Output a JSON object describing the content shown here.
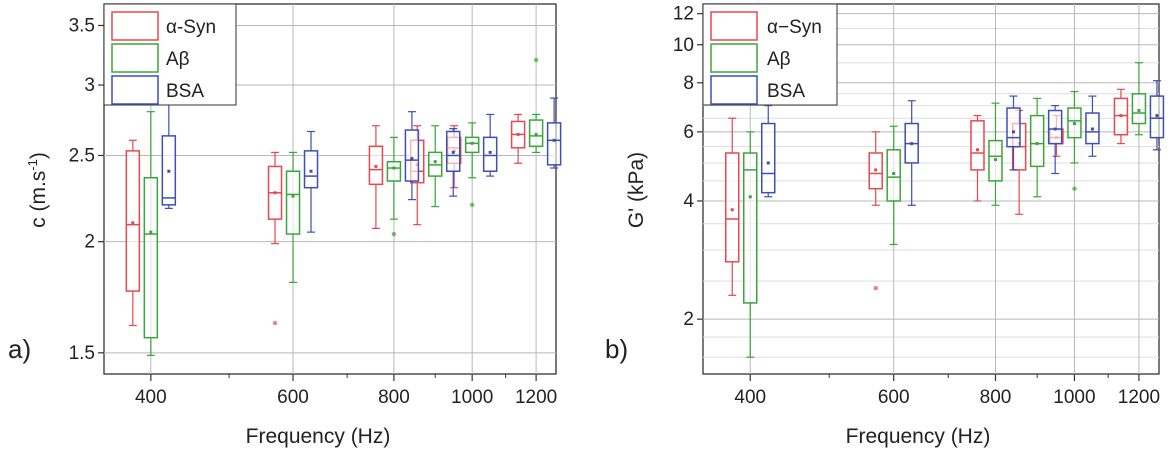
{
  "chart_data": [
    {
      "type": "box",
      "panel_label": "a)",
      "xlabel": "Frequency (Hz)",
      "ylabel": "c (m.s",
      "ylabel_sup": "-1",
      "ylabel_close": ")",
      "y_scale": "log",
      "ylim": [
        1.42,
        3.7
      ],
      "yticks": [
        1.5,
        2,
        2.5,
        3,
        3.5
      ],
      "x_scale": "log",
      "xlim": [
        350,
        1270
      ],
      "xticks": [
        400,
        600,
        800,
        1000,
        1200
      ],
      "grid": true,
      "legend_position": "top-left",
      "categories": [
        400,
        600,
        800,
        900,
        1000,
        1200
      ],
      "series": [
        {
          "name": "α-Syn",
          "color": "#e8484f",
          "boxes": [
            {
              "q1": 1.76,
              "median": 2.09,
              "q3": 2.53,
              "whisker_low": 1.61,
              "whisker_high": 2.6,
              "mean": 2.1,
              "outliers": []
            },
            {
              "q1": 2.12,
              "median": 2.27,
              "q3": 2.43,
              "whisker_low": 1.99,
              "whisker_high": 2.52,
              "mean": 2.27,
              "outliers": [
                1.62
              ]
            },
            {
              "q1": 2.32,
              "median": 2.41,
              "q3": 2.56,
              "whisker_low": 2.07,
              "whisker_high": 2.7,
              "mean": 2.43,
              "outliers": []
            },
            {
              "q1": 2.33,
              "median": 2.4,
              "q3": 2.6,
              "whisker_low": 2.09,
              "whisker_high": 2.7,
              "mean": 2.44,
              "outliers": []
            },
            {
              "q1": 2.45,
              "median": 2.55,
              "q3": 2.62,
              "whisker_low": 2.3,
              "whisker_high": 2.7,
              "mean": 2.53,
              "outliers": []
            },
            {
              "q1": 2.55,
              "median": 2.64,
              "q3": 2.73,
              "whisker_low": 2.45,
              "whisker_high": 2.78,
              "mean": 2.64,
              "outliers": []
            }
          ]
        },
        {
          "name": "Aβ",
          "color": "#3aa53a",
          "boxes": [
            {
              "q1": 1.56,
              "median": 2.04,
              "q3": 2.36,
              "whisker_low": 1.49,
              "whisker_high": 2.8,
              "mean": 2.05,
              "outliers": []
            },
            {
              "q1": 2.04,
              "median": 2.26,
              "q3": 2.4,
              "whisker_low": 1.8,
              "whisker_high": 2.52,
              "mean": 2.25,
              "outliers": []
            },
            {
              "q1": 2.34,
              "median": 2.42,
              "q3": 2.46,
              "whisker_low": 2.12,
              "whisker_high": 2.62,
              "mean": 2.42,
              "outliers": [
                2.04
              ]
            },
            {
              "q1": 2.37,
              "median": 2.44,
              "q3": 2.52,
              "whisker_low": 2.19,
              "whisker_high": 2.7,
              "mean": 2.46,
              "outliers": []
            },
            {
              "q1": 2.52,
              "median": 2.58,
              "q3": 2.62,
              "whisker_low": 2.36,
              "whisker_high": 2.72,
              "mean": 2.58,
              "outliers": [
                2.2
              ]
            },
            {
              "q1": 2.56,
              "median": 2.63,
              "q3": 2.74,
              "whisker_low": 2.52,
              "whisker_high": 2.78,
              "mean": 2.64,
              "outliers": [
                3.2
              ]
            }
          ]
        },
        {
          "name": "BSA",
          "color": "#3d4fb5",
          "boxes": [
            {
              "q1": 2.2,
              "median": 2.24,
              "q3": 2.63,
              "whisker_low": 2.18,
              "whisker_high": 2.85,
              "mean": 2.4,
              "outliers": []
            },
            {
              "q1": 2.3,
              "median": 2.37,
              "q3": 2.53,
              "whisker_low": 2.05,
              "whisker_high": 2.66,
              "mean": 2.4,
              "outliers": []
            },
            {
              "q1": 2.34,
              "median": 2.47,
              "q3": 2.67,
              "whisker_low": 2.23,
              "whisker_high": 2.8,
              "mean": 2.48,
              "outliers": []
            },
            {
              "q1": 2.4,
              "median": 2.5,
              "q3": 2.66,
              "whisker_low": 2.25,
              "whisker_high": 2.68,
              "mean": 2.52,
              "outliers": []
            },
            {
              "q1": 2.4,
              "median": 2.5,
              "q3": 2.62,
              "whisker_low": 2.37,
              "whisker_high": 2.78,
              "mean": 2.52,
              "outliers": []
            },
            {
              "q1": 2.44,
              "median": 2.6,
              "q3": 2.72,
              "whisker_low": 2.42,
              "whisker_high": 2.9,
              "mean": 2.6,
              "outliers": []
            }
          ]
        }
      ]
    },
    {
      "type": "box",
      "panel_label": "b)",
      "xlabel": "Frequency (Hz)",
      "ylabel": "G' (kPa)",
      "y_scale": "log",
      "ylim": [
        1.45,
        12.7
      ],
      "yticks": [
        2,
        4,
        6,
        8,
        10,
        12
      ],
      "x_scale": "log",
      "xlim": [
        350,
        1270
      ],
      "xticks": [
        400,
        600,
        800,
        1000,
        1200
      ],
      "grid": true,
      "legend_position": "top-left",
      "categories": [
        400,
        600,
        800,
        900,
        1000,
        1200
      ],
      "series": [
        {
          "name": "α−Syn",
          "color": "#e8484f",
          "boxes": [
            {
              "q1": 2.8,
              "median": 3.6,
              "q3": 5.3,
              "whisker_low": 2.3,
              "whisker_high": 6.5,
              "mean": 3.8,
              "outliers": []
            },
            {
              "q1": 4.3,
              "median": 4.7,
              "q3": 5.3,
              "whisker_low": 3.9,
              "whisker_high": 6.0,
              "mean": 4.8,
              "outliers": [
                2.4
              ]
            },
            {
              "q1": 4.8,
              "median": 5.3,
              "q3": 6.4,
              "whisker_low": 4.0,
              "whisker_high": 6.6,
              "mean": 5.4,
              "outliers": []
            },
            {
              "q1": 4.8,
              "median": 5.5,
              "q3": 6.3,
              "whisker_low": 3.7,
              "whisker_high": 6.8,
              "mean": 5.6,
              "outliers": []
            },
            {
              "q1": 5.6,
              "median": 5.8,
              "q3": 6.1,
              "whisker_low": 5.2,
              "whisker_high": 6.6,
              "mean": 5.8,
              "outliers": []
            },
            {
              "q1": 5.9,
              "median": 6.6,
              "q3": 7.3,
              "whisker_low": 5.6,
              "whisker_high": 7.7,
              "mean": 6.6,
              "outliers": []
            }
          ]
        },
        {
          "name": "Aβ",
          "color": "#3aa53a",
          "boxes": [
            {
              "q1": 2.2,
              "median": 4.8,
              "q3": 5.3,
              "whisker_low": 1.6,
              "whisker_high": 6.0,
              "mean": 4.1,
              "outliers": []
            },
            {
              "q1": 4.0,
              "median": 4.6,
              "q3": 5.4,
              "whisker_low": 3.1,
              "whisker_high": 6.2,
              "mean": 4.7,
              "outliers": []
            },
            {
              "q1": 4.5,
              "median": 5.2,
              "q3": 5.7,
              "whisker_low": 3.9,
              "whisker_high": 7.1,
              "mean": 5.1,
              "outliers": []
            },
            {
              "q1": 4.9,
              "median": 5.6,
              "q3": 6.6,
              "whisker_low": 4.1,
              "whisker_high": 7.3,
              "mean": 5.6,
              "outliers": []
            },
            {
              "q1": 5.8,
              "median": 6.4,
              "q3": 6.9,
              "whisker_low": 5.0,
              "whisker_high": 7.6,
              "mean": 6.3,
              "outliers": [
                4.3
              ]
            },
            {
              "q1": 6.3,
              "median": 6.7,
              "q3": 7.5,
              "whisker_low": 5.9,
              "whisker_high": 9.0,
              "mean": 6.8,
              "outliers": []
            }
          ]
        },
        {
          "name": "BSA",
          "color": "#3d4fb5",
          "boxes": [
            {
              "q1": 4.2,
              "median": 4.7,
              "q3": 6.3,
              "whisker_low": 4.1,
              "whisker_high": 7.0,
              "mean": 5.0,
              "outliers": []
            },
            {
              "q1": 5.0,
              "median": 5.6,
              "q3": 6.3,
              "whisker_low": 3.9,
              "whisker_high": 7.2,
              "mean": 5.6,
              "outliers": []
            },
            {
              "q1": 5.5,
              "median": 5.8,
              "q3": 6.9,
              "whisker_low": 4.8,
              "whisker_high": 7.4,
              "mean": 6.0,
              "outliers": []
            },
            {
              "q1": 5.6,
              "median": 6.1,
              "q3": 6.8,
              "whisker_low": 4.7,
              "whisker_high": 7.0,
              "mean": 6.1,
              "outliers": []
            },
            {
              "q1": 5.6,
              "median": 6.0,
              "q3": 6.7,
              "whisker_low": 5.2,
              "whisker_high": 7.4,
              "mean": 6.1,
              "outliers": []
            },
            {
              "q1": 5.8,
              "median": 6.5,
              "q3": 7.4,
              "whisker_low": 5.4,
              "whisker_high": 8.1,
              "mean": 6.6,
              "outliers": []
            }
          ]
        }
      ]
    }
  ]
}
